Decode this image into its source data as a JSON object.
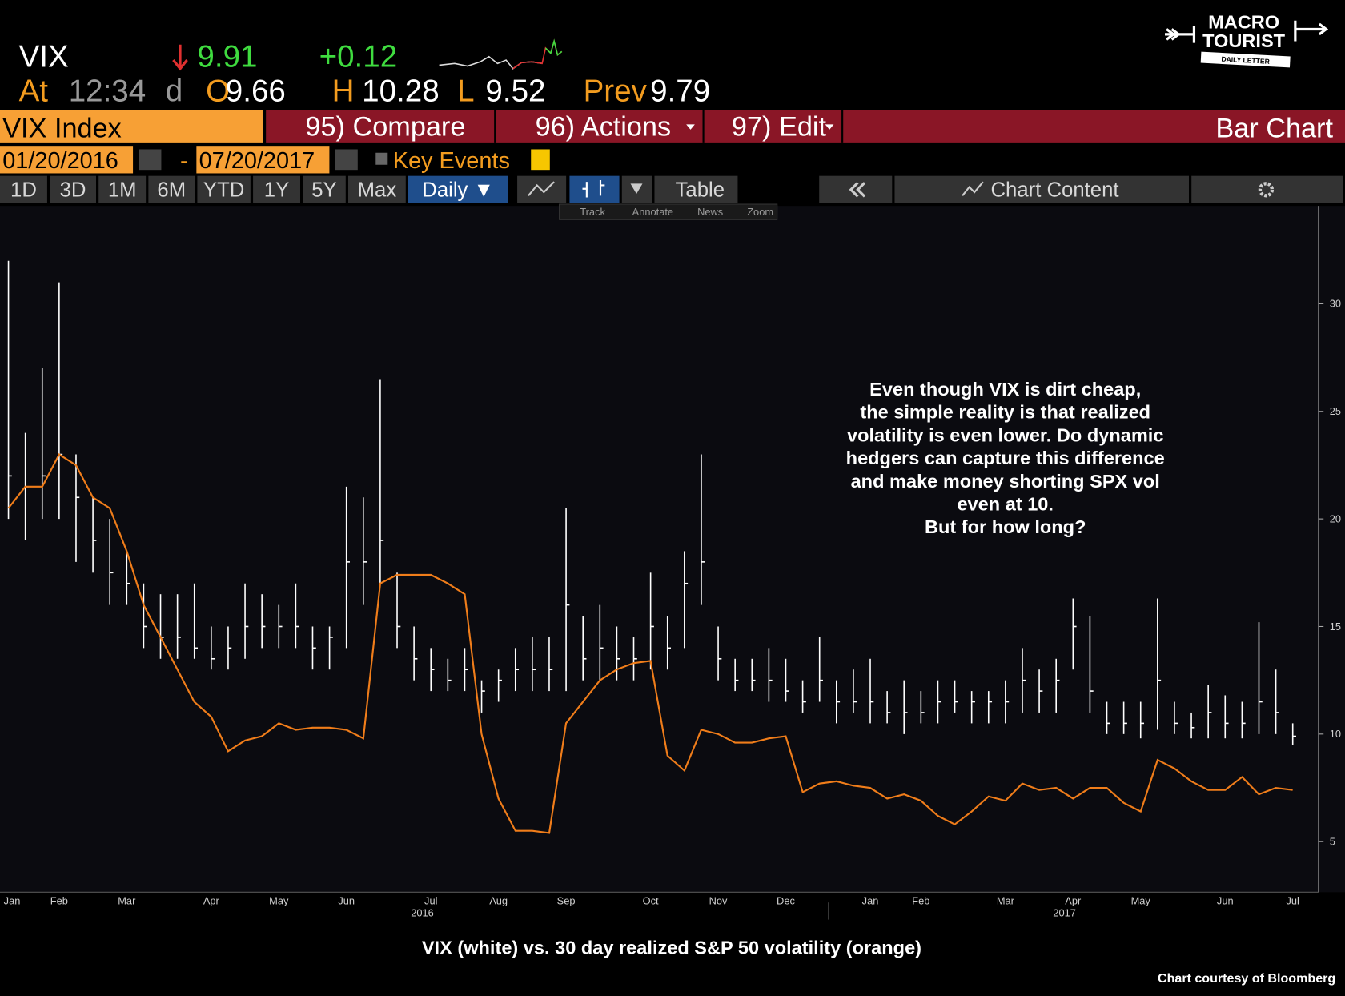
{
  "header": {
    "ticker": "VIX",
    "last": "9.91",
    "change": "+0.12",
    "at": "At",
    "time": "12:34",
    "d": "d",
    "open_label": "O",
    "open": "9.66",
    "high_label": "H",
    "high": "10.28",
    "low_label": "L",
    "low": "9.52",
    "prev_label": "Prev",
    "prev": "9.79"
  },
  "logo": {
    "line1": "MACRO",
    "line2": "TOURIST",
    "line3": "DAILY LETTER"
  },
  "menu": {
    "security": "VIX Index",
    "compare": "95) Compare",
    "actions": "96) Actions",
    "edit": "97) Edit",
    "view": "Bar Chart"
  },
  "dates": {
    "start": "01/20/2016",
    "dash": "-",
    "end": "07/20/2017",
    "key_events": "Key Events"
  },
  "toolbar": {
    "buttons": [
      "1D",
      "3D",
      "1M",
      "6M",
      "YTD",
      "1Y",
      "5Y",
      "Max"
    ],
    "period": "Daily ▼",
    "table": "Table",
    "chart_content": "Chart Content",
    "tools": [
      "Track",
      "Annotate",
      "News",
      "Zoom"
    ]
  },
  "chart_data": {
    "type": "ohlc",
    "categories": [
      "Jan",
      null,
      null,
      "Feb",
      null,
      null,
      null,
      "Mar",
      null,
      null,
      null,
      null,
      "Apr",
      null,
      null,
      null,
      "May",
      null,
      null,
      null,
      "Jun",
      null,
      null,
      null,
      null,
      "Jul",
      null,
      null,
      null,
      "Aug",
      null,
      null,
      null,
      "Sep",
      null,
      null,
      null,
      null,
      "Oct",
      null,
      null,
      null,
      "Nov",
      null,
      null,
      null,
      "Dec",
      null,
      null,
      null,
      null,
      "Jan",
      null,
      null,
      "Feb",
      null,
      null,
      null,
      null,
      "Mar",
      null,
      null,
      null,
      "Apr",
      null,
      null,
      null,
      "May",
      null,
      null,
      null,
      null,
      "Jun",
      null,
      null,
      null,
      "Jul"
    ],
    "year_labels": [
      "2016",
      "2017"
    ],
    "series": [
      {
        "type": "hlc",
        "color": "#ffffff",
        "high": [
          32,
          24,
          27,
          31,
          23,
          21,
          20,
          18.5,
          17,
          16.5,
          16.5,
          17,
          15,
          15,
          17,
          16.5,
          16,
          17,
          15,
          15,
          21.5,
          21,
          26.5,
          17.5,
          15,
          14,
          13.5,
          14,
          12.5,
          13,
          14,
          14.5,
          14.5,
          20.5,
          15.5,
          16,
          15,
          14.5,
          17.5,
          15.5,
          18.5,
          23,
          15,
          13.5,
          13.5,
          14,
          13.5,
          12.5,
          14.5,
          12.5,
          13,
          13.5,
          12,
          12.5,
          12,
          12.5,
          12.5,
          12,
          12,
          12.5,
          14,
          13,
          13.5,
          16.3,
          15.5,
          11.5,
          11.5,
          11.5,
          16.3,
          11.5,
          11,
          12.3,
          11.8,
          11.5,
          15.2,
          13,
          10.5
        ],
        "low": [
          20,
          19,
          20,
          20,
          18,
          17.5,
          16,
          16,
          14,
          13.5,
          13.5,
          13.5,
          13,
          13,
          13.5,
          14,
          14,
          14,
          13,
          13,
          14,
          16,
          17,
          14,
          12.5,
          12,
          12,
          12,
          11,
          11.5,
          12,
          12,
          12,
          12,
          12.5,
          12.5,
          12.5,
          12.5,
          13,
          13,
          14,
          16,
          12.5,
          12,
          12,
          11.5,
          11.5,
          11,
          11.5,
          10.5,
          11,
          10.5,
          10.5,
          10,
          10.5,
          10.5,
          11,
          10.5,
          10.5,
          10.5,
          11,
          11,
          11,
          13,
          11,
          10,
          10,
          9.8,
          10.2,
          10,
          9.8,
          9.8,
          9.8,
          9.8,
          10,
          10,
          9.5
        ],
        "close": [
          22,
          21.5,
          22,
          23,
          21,
          19,
          17.5,
          17,
          15,
          14.5,
          14.5,
          14,
          13.5,
          14,
          15,
          15,
          15,
          15,
          14,
          14.5,
          18,
          18,
          19,
          15,
          13.5,
          13,
          12.5,
          13,
          12,
          12.5,
          13,
          13,
          13,
          16,
          13.5,
          14,
          13.5,
          13.5,
          15,
          14,
          17,
          18,
          13.5,
          12.5,
          12.5,
          12.5,
          12,
          11.5,
          12.5,
          11.5,
          11.5,
          11.5,
          11,
          11,
          11,
          11.5,
          11.5,
          11.5,
          11.5,
          11.5,
          12.5,
          12,
          12.5,
          15,
          12,
          10.5,
          10.5,
          10.5,
          12.5,
          10.5,
          10.3,
          11,
          10.5,
          10.5,
          11.5,
          11,
          9.9
        ]
      },
      {
        "type": "line",
        "color": "#f07d1a",
        "values": [
          20.5,
          21.5,
          21.5,
          23,
          22.5,
          21,
          20.5,
          18.5,
          16,
          14.5,
          13,
          11.5,
          10.8,
          9.2,
          9.7,
          9.9,
          10.5,
          10.2,
          10.3,
          10.3,
          10.2,
          9.8,
          17,
          17.4,
          17.4,
          17.4,
          17,
          16.5,
          10,
          7,
          5.5,
          5.5,
          5.4,
          10.5,
          11.5,
          12.5,
          13,
          13.3,
          13.4,
          9,
          8.3,
          10.2,
          10,
          9.6,
          9.6,
          9.8,
          9.9,
          7.3,
          7.7,
          7.8,
          7.6,
          7.5,
          7,
          7.2,
          6.9,
          6.2,
          5.8,
          6.4,
          7.1,
          6.9,
          7.7,
          7.4,
          7.5,
          7,
          7.5,
          7.5,
          6.8,
          6.4,
          8.8,
          8.4,
          7.8,
          7.4,
          7.4,
          8,
          7.2,
          7.5,
          7.4
        ]
      }
    ],
    "ylim": [
      2.65,
      34.55
    ],
    "yticks": [
      5,
      10,
      15,
      20,
      25,
      30
    ],
    "annotation": [
      "Even though VIX is dirt cheap,",
      "the simple reality is that realized",
      "volatility is even lower.  Do dynamic",
      "hedgers can capture this difference",
      "and make money shorting SPX vol",
      "even at 10.",
      "But for how long?"
    ],
    "caption": "VIX (white) vs. 30 day realized S&P 50 volatility (orange)",
    "credit": "Chart courtesy of Bloomberg"
  }
}
